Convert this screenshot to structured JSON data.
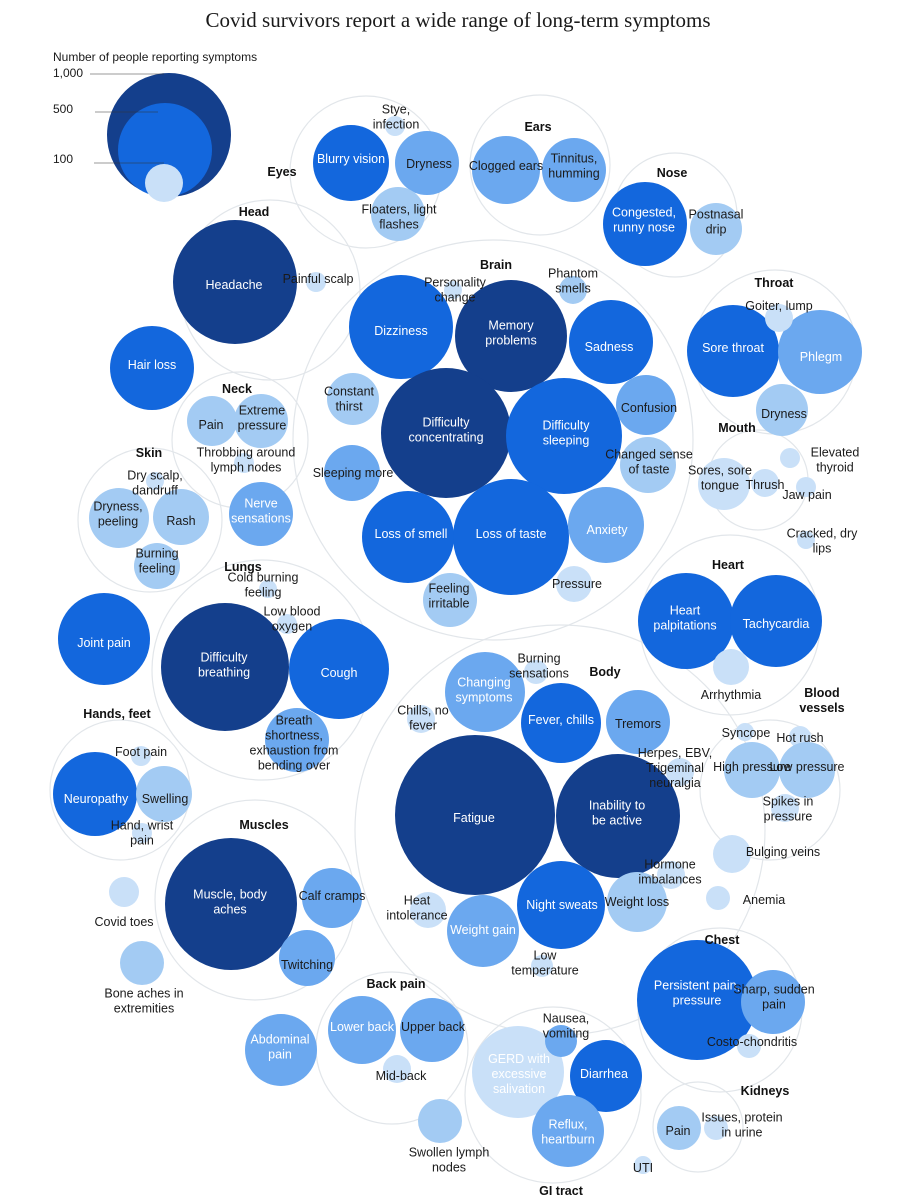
{
  "chart_data": {
    "type": "bubble",
    "title": "Covid survivors report a wide range of long-term symptoms",
    "legend": {
      "label": "Number of people reporting symptoms",
      "scale": [
        "1,000",
        "500",
        "100"
      ]
    },
    "colors": {
      "dark": "#143f8c",
      "mid": "#1367dd",
      "light": "#6ba8ef",
      "lighter": "#a3cbf3",
      "pale": "#c9e0f8",
      "group_outline": "#e2e6ea"
    },
    "groups": [
      {
        "name": "Eyes",
        "symptoms": [
          {
            "label": "Blurry vision",
            "tier": "mid"
          },
          {
            "label": "Dryness",
            "tier": "light"
          },
          {
            "label": "Stye, infection",
            "tier": "pale"
          },
          {
            "label": "Floaters, light flashes",
            "tier": "lighter"
          }
        ]
      },
      {
        "name": "Ears",
        "symptoms": [
          {
            "label": "Clogged ears",
            "tier": "light"
          },
          {
            "label": "Tinnitus, humming",
            "tier": "light"
          }
        ]
      },
      {
        "name": "Nose",
        "symptoms": [
          {
            "label": "Congested, runny nose",
            "tier": "mid"
          },
          {
            "label": "Postnasal drip",
            "tier": "lighter"
          }
        ]
      },
      {
        "name": "Head",
        "symptoms": [
          {
            "label": "Headache",
            "tier": "dark"
          },
          {
            "label": "Painful scalp",
            "tier": "pale"
          }
        ]
      },
      {
        "name": "Brain",
        "symptoms": [
          {
            "label": "Dizziness",
            "tier": "mid"
          },
          {
            "label": "Personality change",
            "tier": "pale"
          },
          {
            "label": "Memory problems",
            "tier": "dark"
          },
          {
            "label": "Phantom smells",
            "tier": "lighter"
          },
          {
            "label": "Sadness",
            "tier": "mid"
          },
          {
            "label": "Constant thirst",
            "tier": "lighter"
          },
          {
            "label": "Difficulty concentrating",
            "tier": "dark"
          },
          {
            "label": "Difficulty sleeping",
            "tier": "mid"
          },
          {
            "label": "Confusion",
            "tier": "light"
          },
          {
            "label": "Sleeping more",
            "tier": "light"
          },
          {
            "label": "Changed sense of taste",
            "tier": "lighter"
          },
          {
            "label": "Loss of smell",
            "tier": "mid"
          },
          {
            "label": "Loss of taste",
            "tier": "mid"
          },
          {
            "label": "Anxiety",
            "tier": "light"
          },
          {
            "label": "Pressure",
            "tier": "pale"
          },
          {
            "label": "Feeling irritable",
            "tier": "lighter"
          }
        ]
      },
      {
        "name": "Throat",
        "symptoms": [
          {
            "label": "Sore throat",
            "tier": "mid"
          },
          {
            "label": "Phlegm",
            "tier": "light"
          },
          {
            "label": "Goiter, lump",
            "tier": "pale"
          },
          {
            "label": "Dryness",
            "tier": "lighter"
          }
        ]
      },
      {
        "name": "Mouth",
        "symptoms": [
          {
            "label": "Sores, sore tongue",
            "tier": "pale"
          },
          {
            "label": "Thrush",
            "tier": "pale"
          },
          {
            "label": "Jaw pain",
            "tier": "pale"
          },
          {
            "label": "Cracked, dry lips",
            "tier": "pale"
          },
          {
            "label": "Elevated thyroid",
            "tier": "pale"
          }
        ]
      },
      {
        "name": "Neck",
        "symptoms": [
          {
            "label": "Pain",
            "tier": "lighter"
          },
          {
            "label": "Extreme pressure",
            "tier": "lighter"
          },
          {
            "label": "Throbbing around lymph nodes",
            "tier": "pale"
          },
          {
            "label": "Nerve sensations",
            "tier": "light"
          }
        ]
      },
      {
        "name": "Skin",
        "symptoms": [
          {
            "label": "Dry scalp, dandruff",
            "tier": "pale"
          },
          {
            "label": "Dryness, peeling",
            "tier": "lighter"
          },
          {
            "label": "Rash",
            "tier": "lighter"
          },
          {
            "label": "Burning feeling",
            "tier": "lighter"
          }
        ]
      },
      {
        "name": "Hair loss",
        "symptoms": [
          {
            "label": "Hair loss",
            "tier": "mid"
          }
        ]
      },
      {
        "name": "Joint pain",
        "symptoms": [
          {
            "label": "Joint pain",
            "tier": "mid"
          }
        ]
      },
      {
        "name": "Lungs",
        "symptoms": [
          {
            "label": "Cold burning feeling",
            "tier": "pale"
          },
          {
            "label": "Low blood oxygen",
            "tier": "pale"
          },
          {
            "label": "Difficulty breathing",
            "tier": "dark"
          },
          {
            "label": "Cough",
            "tier": "mid"
          },
          {
            "label": "Breath shortness, exhaustion from bending over",
            "tier": "light"
          }
        ]
      },
      {
        "name": "Heart",
        "symptoms": [
          {
            "label": "Heart palpitations",
            "tier": "mid"
          },
          {
            "label": "Tachycardia",
            "tier": "mid"
          },
          {
            "label": "Arrhythmia",
            "tier": "pale"
          }
        ]
      },
      {
        "name": "Blood vessels",
        "symptoms": [
          {
            "label": "Syncope",
            "tier": "pale"
          },
          {
            "label": "Hot rush",
            "tier": "pale"
          },
          {
            "label": "High pressure",
            "tier": "lighter"
          },
          {
            "label": "Low pressure",
            "tier": "lighter"
          },
          {
            "label": "Spikes in pressure",
            "tier": "pale"
          },
          {
            "label": "Bulging veins",
            "tier": "pale"
          },
          {
            "label": "Anemia",
            "tier": "pale"
          }
        ]
      },
      {
        "name": "Body",
        "symptoms": [
          {
            "label": "Changing symptoms",
            "tier": "light"
          },
          {
            "label": "Burning sensations",
            "tier": "pale"
          },
          {
            "label": "Chills, no fever",
            "tier": "pale"
          },
          {
            "label": "Fever, chills",
            "tier": "mid"
          },
          {
            "label": "Tremors",
            "tier": "light"
          },
          {
            "label": "Herpes, EBV, Trigeminal neuralgia",
            "tier": "pale"
          },
          {
            "label": "Fatigue",
            "tier": "dark"
          },
          {
            "label": "Inability to be active",
            "tier": "dark"
          },
          {
            "label": "Hormone imbalances",
            "tier": "pale"
          },
          {
            "label": "Heat intolerance",
            "tier": "pale"
          },
          {
            "label": "Weight gain",
            "tier": "light"
          },
          {
            "label": "Night sweats",
            "tier": "mid"
          },
          {
            "label": "Weight loss",
            "tier": "lighter"
          },
          {
            "label": "Low temperature",
            "tier": "pale"
          }
        ]
      },
      {
        "name": "Hands, feet",
        "symptoms": [
          {
            "label": "Foot pain",
            "tier": "pale"
          },
          {
            "label": "Neuropathy",
            "tier": "mid"
          },
          {
            "label": "Swelling",
            "tier": "lighter"
          },
          {
            "label": "Hand, wrist pain",
            "tier": "pale"
          }
        ]
      },
      {
        "name": "Muscles",
        "symptoms": [
          {
            "label": "Muscle, body aches",
            "tier": "dark"
          },
          {
            "label": "Calf cramps",
            "tier": "light"
          },
          {
            "label": "Twitching",
            "tier": "light"
          }
        ]
      },
      {
        "name": "Covid toes",
        "symptoms": [
          {
            "label": "Covid toes",
            "tier": "pale"
          }
        ]
      },
      {
        "name": "Bone aches in extremities",
        "symptoms": [
          {
            "label": "Bone aches in extremities",
            "tier": "lighter"
          }
        ]
      },
      {
        "name": "Abdominal pain",
        "symptoms": [
          {
            "label": "Abdominal pain",
            "tier": "light"
          }
        ]
      },
      {
        "name": "Back pain",
        "symptoms": [
          {
            "label": "Lower back",
            "tier": "light"
          },
          {
            "label": "Upper back",
            "tier": "light"
          },
          {
            "label": "Mid-back",
            "tier": "pale"
          }
        ]
      },
      {
        "name": "Swollen lymph nodes",
        "symptoms": [
          {
            "label": "Swollen lymph nodes",
            "tier": "lighter"
          }
        ]
      },
      {
        "name": "GI tract",
        "symptoms": [
          {
            "label": "GERD with excessive salivation",
            "tier": "pale"
          },
          {
            "label": "Diarrhea",
            "tier": "mid"
          },
          {
            "label": "Reflux, heartburn",
            "tier": "light"
          },
          {
            "label": "Nausea, vomiting",
            "tier": "light"
          },
          {
            "label": "UTI",
            "tier": "pale"
          }
        ]
      },
      {
        "name": "Chest",
        "symptoms": [
          {
            "label": "Persistent pain, pressure",
            "tier": "mid"
          },
          {
            "label": "Sharp, sudden pain",
            "tier": "light"
          },
          {
            "label": "Costo-chondritis",
            "tier": "pale"
          }
        ]
      },
      {
        "name": "Kidneys",
        "symptoms": [
          {
            "label": "Pain",
            "tier": "lighter"
          },
          {
            "label": "Issues, protein in urine",
            "tier": "pale"
          }
        ]
      }
    ]
  }
}
